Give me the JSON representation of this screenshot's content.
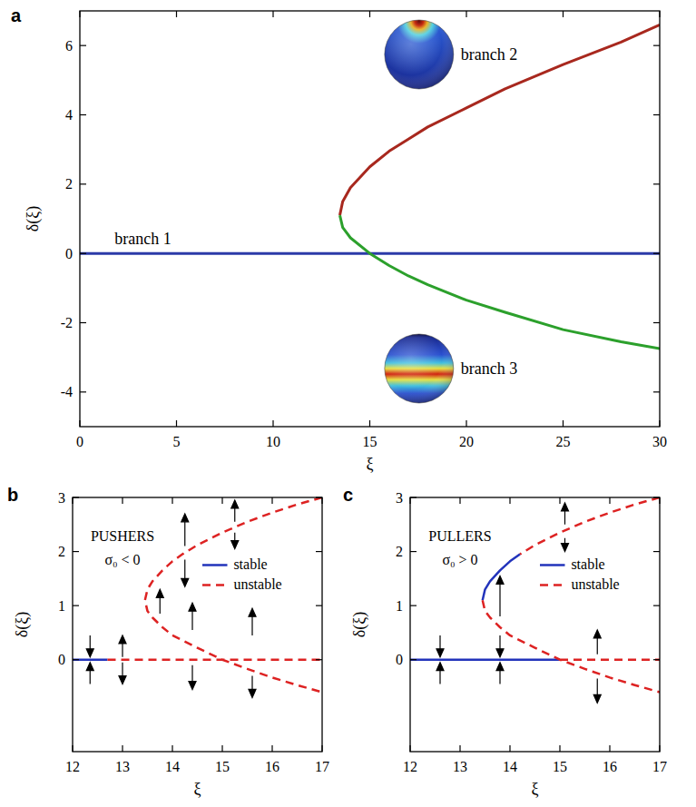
{
  "chart_data": [
    {
      "type": "line",
      "panel_label": "a",
      "x_label": "ξ",
      "y_label": "δ(ξ)",
      "xlim": [
        0,
        30
      ],
      "xticks": [
        0,
        5,
        10,
        15,
        20,
        25,
        30
      ],
      "ylim": [
        -5,
        7
      ],
      "yticks": [
        -4,
        -2,
        0,
        2,
        4,
        6
      ],
      "grid": false,
      "series": [
        {
          "name": "branch 1",
          "color": "#2b3aa8",
          "line_style": "solid",
          "x": [
            0,
            30
          ],
          "values": [
            0,
            0
          ]
        },
        {
          "name": "branch 2",
          "color": "#a8281e",
          "line_style": "solid",
          "x": [
            13.45,
            13.6,
            14,
            15,
            16,
            17,
            18,
            20,
            22,
            25,
            28,
            30
          ],
          "values": [
            1.1,
            1.5,
            1.9,
            2.5,
            2.95,
            3.3,
            3.65,
            4.2,
            4.75,
            5.45,
            6.1,
            6.6
          ]
        },
        {
          "name": "branch 3",
          "color": "#2ca02c",
          "line_style": "solid",
          "x": [
            13.45,
            13.6,
            14,
            15,
            16,
            17,
            18,
            20,
            22,
            25,
            28,
            30
          ],
          "values": [
            1.1,
            0.75,
            0.45,
            0,
            -0.35,
            -0.65,
            -0.9,
            -1.35,
            -1.7,
            -2.2,
            -2.55,
            -2.75
          ]
        }
      ]
    },
    {
      "type": "line",
      "panel_label": "b",
      "x_label": "ξ",
      "y_label": "δ(ξ)",
      "annotations": [
        "PUSHERS",
        "σ₀ < 0"
      ],
      "xlim": [
        12,
        17
      ],
      "xticks": [
        12,
        13,
        14,
        15,
        16,
        17
      ],
      "ylim": [
        -1.7,
        3
      ],
      "yticks": [
        0,
        1,
        2,
        3
      ],
      "grid": false,
      "legend": "center right",
      "series": [
        {
          "name": "stable",
          "color": "#2233bb",
          "line_style": "solid",
          "x": [
            12,
            12.7
          ],
          "values": [
            0,
            0
          ]
        },
        {
          "name": "unstable",
          "color": "#dd2222",
          "line_style": "dashed",
          "x": [
            12.7,
            17,
            17,
            17,
            16.5,
            16,
            15.5,
            15,
            14.5,
            14.2,
            14,
            13.8,
            13.6,
            13.5,
            13.45,
            13.5,
            13.6,
            13.8,
            14,
            14.5,
            15,
            15.5,
            16,
            16.5,
            17
          ],
          "values": [
            0,
            0,
            null,
            3.0,
            2.87,
            2.72,
            2.55,
            2.35,
            2.12,
            1.95,
            1.82,
            1.65,
            1.45,
            1.3,
            1.1,
            0.9,
            0.78,
            0.6,
            0.45,
            0.22,
            0,
            -0.17,
            -0.33,
            -0.47,
            -0.6
          ]
        }
      ],
      "arrows": [
        {
          "x": 12.35,
          "from": 0.45,
          "to": 0.05
        },
        {
          "x": 12.35,
          "from": -0.45,
          "to": -0.05
        },
        {
          "x": 13,
          "from": 0.05,
          "to": 0.45
        },
        {
          "x": 13,
          "from": -0.05,
          "to": -0.45
        },
        {
          "x": 13.75,
          "from": 0.85,
          "to": 1.3
        },
        {
          "x": 14.25,
          "from": 2.1,
          "to": 2.7
        },
        {
          "x": 14.25,
          "from": 1.85,
          "to": 1.35
        },
        {
          "x": 14.4,
          "from": 0.55,
          "to": 1.05
        },
        {
          "x": 14.4,
          "from": -0.1,
          "to": -0.55
        },
        {
          "x": 15.25,
          "from": 2.55,
          "to": 2.95
        },
        {
          "x": 15.25,
          "from": 2.35,
          "to": 2.05
        },
        {
          "x": 15.6,
          "from": 0.45,
          "to": 0.95
        },
        {
          "x": 15.6,
          "from": -0.3,
          "to": -0.7
        }
      ]
    },
    {
      "type": "line",
      "panel_label": "c",
      "x_label": "ξ",
      "y_label": "δ(ξ)",
      "annotations": [
        "PULLERS",
        "σ₀ > 0"
      ],
      "xlim": [
        12,
        17
      ],
      "xticks": [
        12,
        13,
        14,
        15,
        16,
        17
      ],
      "ylim": [
        -1.7,
        3
      ],
      "yticks": [
        0,
        1,
        2,
        3
      ],
      "grid": false,
      "legend": "center right",
      "series": [
        {
          "name": "stable",
          "color": "#2233bb",
          "line_style": "solid",
          "x": [
            12,
            15,
            15,
            13.45,
            13.5,
            13.6,
            13.8,
            14,
            14.2
          ],
          "values": [
            0,
            0,
            null,
            1.1,
            1.3,
            1.45,
            1.65,
            1.82,
            1.95
          ]
        },
        {
          "name": "unstable",
          "color": "#dd2222",
          "line_style": "dashed",
          "x": [
            15,
            17,
            17,
            17,
            16.5,
            16,
            15.5,
            15,
            14.5,
            14.2,
            14.2,
            13.45,
            13.5,
            13.6,
            13.8,
            14,
            14.5,
            15,
            15.5,
            16,
            16.5,
            17
          ],
          "values": [
            0,
            0,
            null,
            3.0,
            2.87,
            2.72,
            2.55,
            2.35,
            2.12,
            1.95,
            null,
            1.1,
            0.9,
            0.78,
            0.6,
            0.45,
            0.22,
            0,
            -0.17,
            -0.33,
            -0.47,
            -0.6
          ]
        }
      ],
      "arrows": [
        {
          "x": 12.6,
          "from": 0.45,
          "to": 0.05
        },
        {
          "x": 12.6,
          "from": -0.45,
          "to": -0.05
        },
        {
          "x": 13.8,
          "from": 0.45,
          "to": 0.05
        },
        {
          "x": 13.8,
          "from": 0.8,
          "to": 1.55
        },
        {
          "x": 13.8,
          "from": -0.45,
          "to": -0.05
        },
        {
          "x": 15.1,
          "from": 2.5,
          "to": 2.9
        },
        {
          "x": 15.1,
          "from": 2.25,
          "to": 2.0
        },
        {
          "x": 15.75,
          "from": 0.1,
          "to": 0.55
        },
        {
          "x": 15.75,
          "from": -0.35,
          "to": -0.8
        }
      ]
    }
  ]
}
